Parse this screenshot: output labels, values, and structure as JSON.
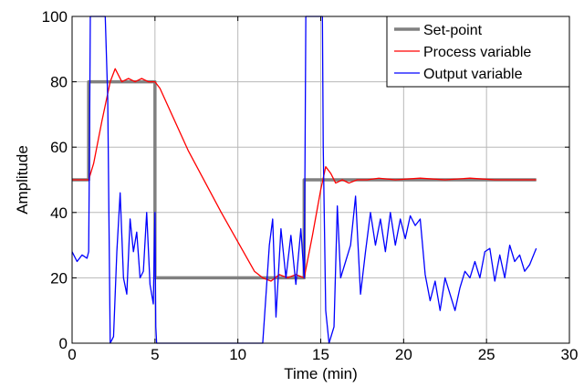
{
  "chart_data": {
    "type": "line",
    "xlabel": "Time (min)",
    "ylabel": "Amplitude",
    "xlim": [
      0,
      30
    ],
    "ylim": [
      0,
      100
    ],
    "x_ticks": [
      0,
      5,
      10,
      15,
      20,
      25,
      30
    ],
    "y_ticks": [
      0,
      20,
      40,
      60,
      80,
      100
    ],
    "grid": true,
    "legend_position": "top-right",
    "series": [
      {
        "name": "Set-point",
        "color": "#808080",
        "x": [
          0,
          1,
          1,
          5,
          5,
          14,
          14,
          28
        ],
        "y": [
          50,
          50,
          80,
          80,
          20,
          20,
          50,
          50
        ]
      },
      {
        "name": "Process variable",
        "color": "#ff0000",
        "x": [
          0,
          1.0,
          1.3,
          1.8,
          2.3,
          2.6,
          3.0,
          3.4,
          3.8,
          4.2,
          4.6,
          5.0,
          5.3,
          7.0,
          9.0,
          11.0,
          11.5,
          12.0,
          12.5,
          13.0,
          13.5,
          14.0,
          14.5,
          15.0,
          15.3,
          15.6,
          15.9,
          16.3,
          16.7,
          17.2,
          17.8,
          18.5,
          19.5,
          21.0,
          22.5,
          24.0,
          25.5,
          27.0,
          28.0
        ],
        "y": [
          50,
          50,
          55,
          68,
          80,
          84,
          80,
          81,
          80,
          81,
          80,
          80,
          78,
          59,
          40,
          22,
          20,
          19,
          21,
          20,
          21,
          20,
          33,
          47,
          54,
          52,
          49,
          50,
          49,
          50,
          50,
          50.5,
          50,
          50.5,
          50,
          50.5,
          50,
          50,
          50
        ]
      },
      {
        "name": "Output variable",
        "color": "#0000ff",
        "x": [
          0,
          0.3,
          0.6,
          0.9,
          1.0,
          1.05,
          1.1,
          2.0,
          2.15,
          2.3,
          2.5,
          2.7,
          2.9,
          3.1,
          3.3,
          3.5,
          3.7,
          3.9,
          4.1,
          4.3,
          4.5,
          4.7,
          4.9,
          5.0,
          5.05,
          5.1,
          8.0,
          10.0,
          11.5,
          11.9,
          12.1,
          12.3,
          12.6,
          12.9,
          13.2,
          13.5,
          13.8,
          14.0,
          14.05,
          14.1,
          15.1,
          15.15,
          15.3,
          15.5,
          15.8,
          16.0,
          16.2,
          16.5,
          16.8,
          17.1,
          17.4,
          17.7,
          18.0,
          18.3,
          18.6,
          18.9,
          19.2,
          19.5,
          19.8,
          20.1,
          20.4,
          20.7,
          21.0,
          21.3,
          21.6,
          21.9,
          22.2,
          22.5,
          22.8,
          23.1,
          23.4,
          23.7,
          24.0,
          24.3,
          24.6,
          24.9,
          25.2,
          25.5,
          25.8,
          26.1,
          26.4,
          26.7,
          27.0,
          27.3,
          27.6,
          28.0
        ],
        "y": [
          28,
          25,
          27,
          26,
          28,
          60,
          100,
          100,
          75,
          0,
          2,
          28,
          46,
          20,
          15,
          38,
          28,
          34,
          20,
          22,
          40,
          18,
          12,
          40,
          5,
          0,
          0,
          0,
          0,
          30,
          38,
          8,
          35,
          20,
          33,
          18,
          35,
          20,
          55,
          100,
          100,
          60,
          10,
          0,
          5,
          42,
          20,
          25,
          30,
          45,
          15,
          28,
          40,
          30,
          38,
          28,
          40,
          30,
          38,
          32,
          39,
          36,
          38,
          21,
          13,
          19,
          10,
          20,
          15,
          10,
          17,
          22,
          20,
          25,
          20,
          28,
          29,
          19,
          27,
          20,
          30,
          25,
          27,
          22,
          24,
          29
        ]
      }
    ]
  }
}
